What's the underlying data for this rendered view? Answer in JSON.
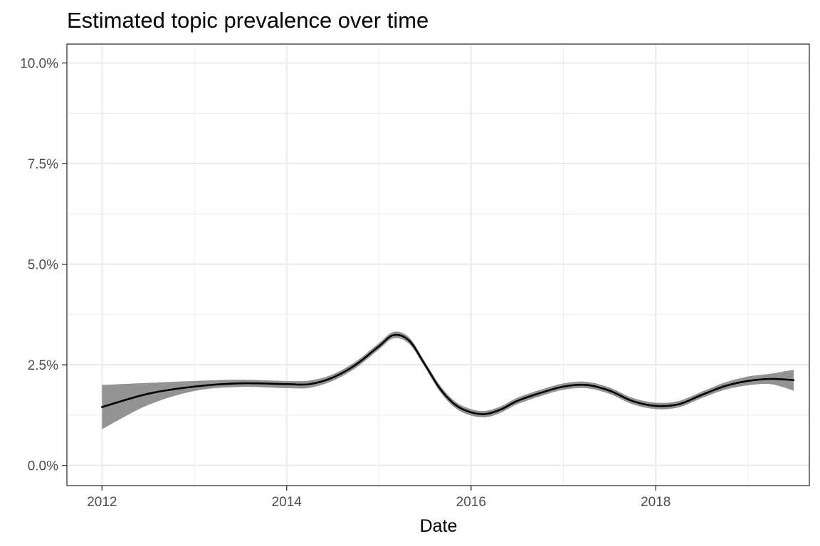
{
  "chart_data": {
    "type": "line",
    "title": "Estimated topic prevalence over time",
    "xlabel": "Date",
    "ylabel": "",
    "x_is_date": true,
    "xlim": [
      "2011-08-15",
      "2019-09-01"
    ],
    "ylim": [
      -0.005,
      0.1047
    ],
    "x_ticks": [
      {
        "value": "2012-01-01",
        "label": "2012"
      },
      {
        "value": "2014-01-01",
        "label": "2014"
      },
      {
        "value": "2016-01-01",
        "label": "2016"
      },
      {
        "value": "2018-01-01",
        "label": "2018"
      }
    ],
    "x_minor_ticks": [
      "2013-01-01",
      "2015-01-01",
      "2017-01-01",
      "2019-01-01"
    ],
    "y_ticks": [
      {
        "value": 0.0,
        "label": "0.0%"
      },
      {
        "value": 0.025,
        "label": "2.5%"
      },
      {
        "value": 0.05,
        "label": "5.0%"
      },
      {
        "value": 0.075,
        "label": "7.5%"
      },
      {
        "value": 0.1,
        "label": "10.0%"
      }
    ],
    "y_minor_ticks": [
      0.0125,
      0.0375,
      0.0625,
      0.0875
    ],
    "grid": true,
    "legend": "none",
    "colors": {
      "line": "#000000",
      "ribbon": "#808080",
      "grid": "#ebebeb",
      "panel_border": "#333333"
    },
    "series": [
      {
        "x": [
          "2012-01-01",
          "2012-07-01",
          "2013-01-01",
          "2013-07-01",
          "2014-01-01",
          "2014-04-01",
          "2014-07-01",
          "2014-10-01",
          "2015-01-01",
          "2015-03-01",
          "2015-05-01",
          "2015-07-01",
          "2015-09-01",
          "2015-11-01",
          "2016-01-01",
          "2016-03-01",
          "2016-05-01",
          "2016-07-01",
          "2016-10-01",
          "2017-01-01",
          "2017-04-01",
          "2017-07-01",
          "2017-10-01",
          "2018-01-01",
          "2018-04-01",
          "2018-07-01",
          "2018-10-01",
          "2019-01-01",
          "2019-04-01",
          "2019-07-01"
        ],
        "y": [
          0.0145,
          0.0178,
          0.0196,
          0.0204,
          0.0202,
          0.0202,
          0.0218,
          0.025,
          0.0296,
          0.0324,
          0.031,
          0.0252,
          0.019,
          0.015,
          0.0132,
          0.0128,
          0.014,
          0.016,
          0.018,
          0.0196,
          0.02,
          0.0186,
          0.016,
          0.0148,
          0.0152,
          0.0175,
          0.0197,
          0.021,
          0.0215,
          0.0212
        ],
        "lower": [
          0.009,
          0.015,
          0.0185,
          0.0195,
          0.0192,
          0.0193,
          0.021,
          0.0242,
          0.0288,
          0.0316,
          0.0302,
          0.0245,
          0.0182,
          0.0142,
          0.0124,
          0.012,
          0.0132,
          0.0152,
          0.0172,
          0.0188,
          0.0192,
          0.0178,
          0.0152,
          0.014,
          0.0144,
          0.0167,
          0.0188,
          0.0199,
          0.0202,
          0.0186
        ],
        "upper": [
          0.02,
          0.0205,
          0.021,
          0.0213,
          0.021,
          0.0211,
          0.0226,
          0.0258,
          0.0304,
          0.0332,
          0.0318,
          0.0259,
          0.0198,
          0.0158,
          0.014,
          0.0136,
          0.0148,
          0.0168,
          0.0188,
          0.0204,
          0.0208,
          0.0194,
          0.0168,
          0.0156,
          0.016,
          0.0183,
          0.0206,
          0.0221,
          0.0228,
          0.0238
        ]
      }
    ]
  }
}
